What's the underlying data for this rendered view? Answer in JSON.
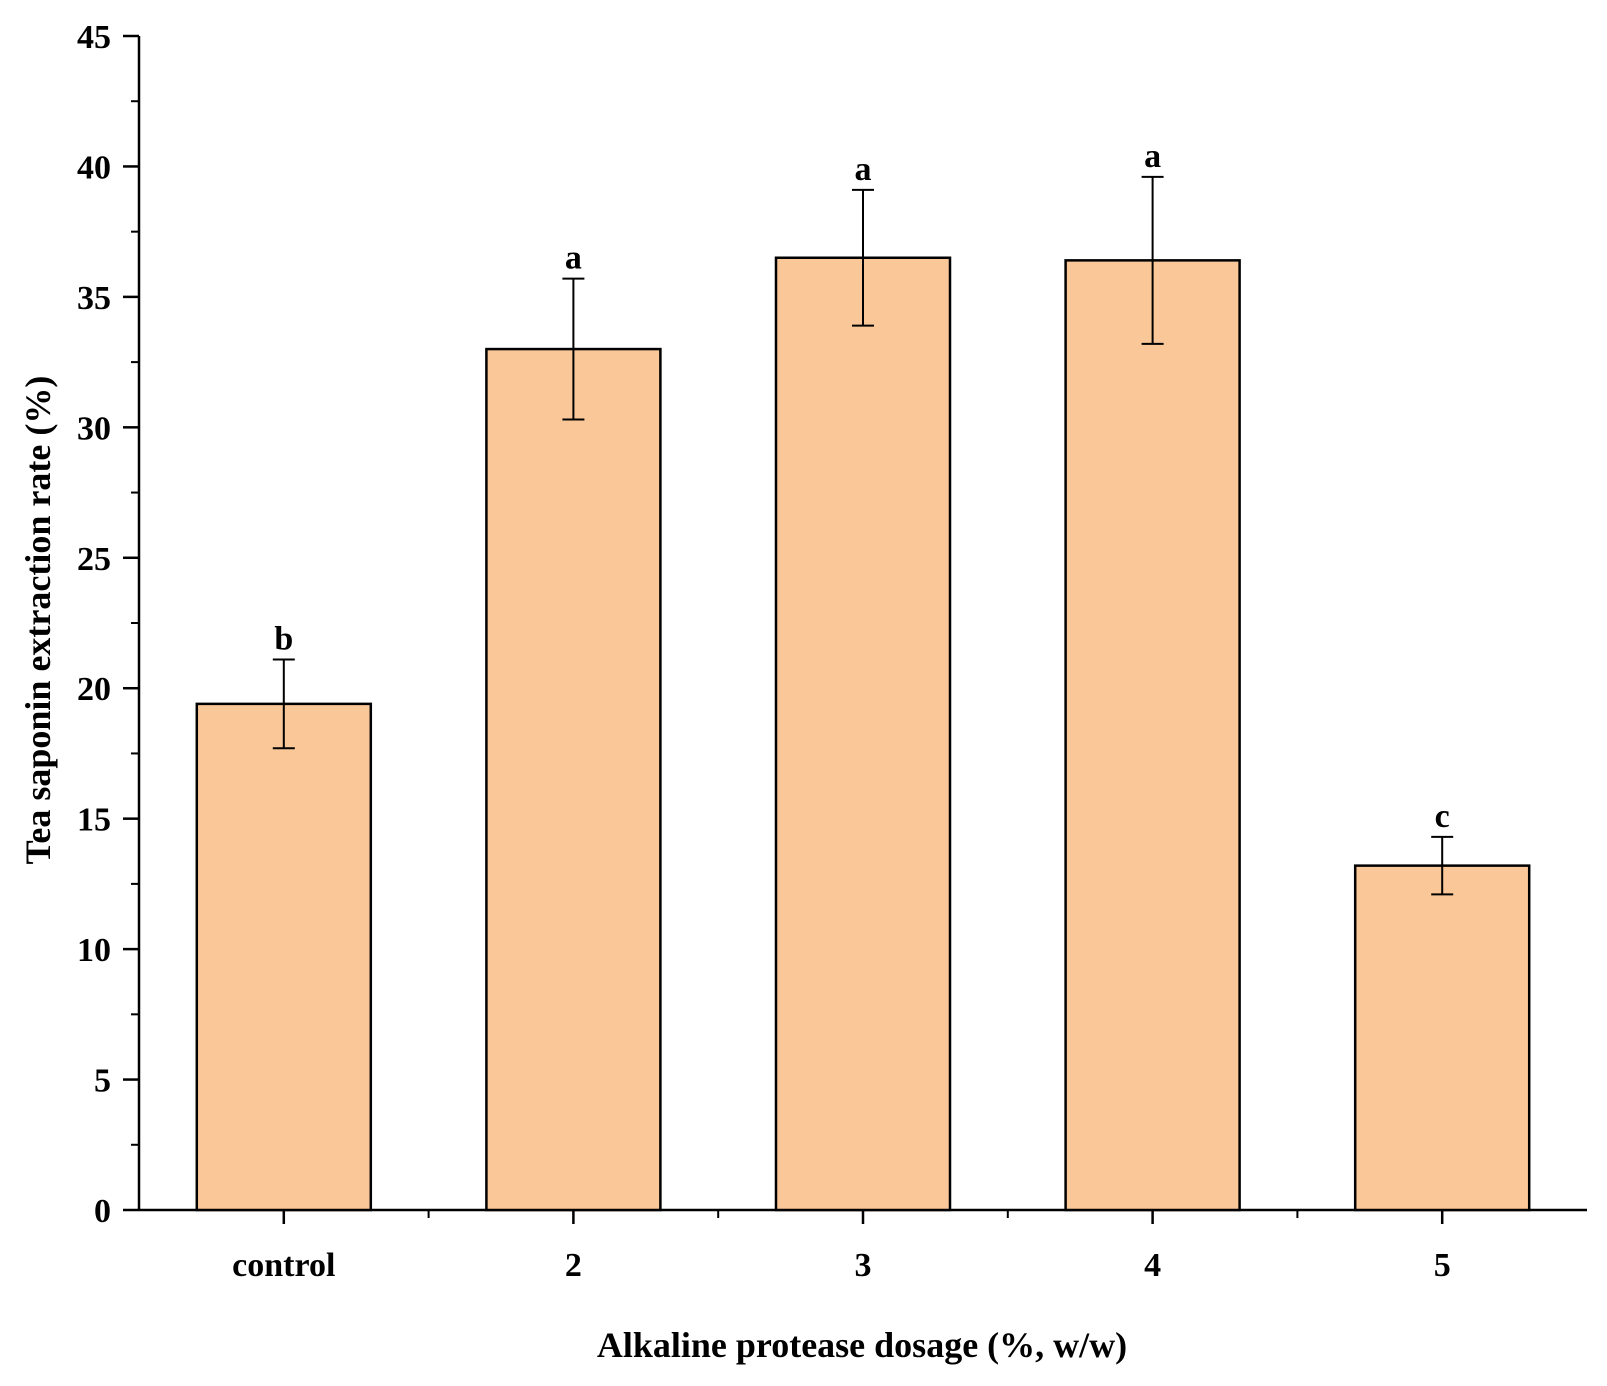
{
  "chart_data": {
    "type": "bar",
    "title": "",
    "xlabel": "Alkaline protease dosage (%, w/w)",
    "ylabel": "Tea saponin extraction rate (%)",
    "categories": [
      "control",
      "2",
      "3",
      "4",
      "5"
    ],
    "values": [
      19.4,
      33.0,
      36.5,
      36.4,
      13.2
    ],
    "errors": [
      1.7,
      2.7,
      2.6,
      3.2,
      1.1
    ],
    "significance": [
      "b",
      "a",
      "a",
      "a",
      "c"
    ],
    "ylim": [
      0,
      45
    ],
    "yticks": [
      0,
      5,
      10,
      15,
      20,
      25,
      30,
      35,
      40,
      45
    ],
    "ytick_labels": [
      "0",
      "5",
      "10",
      "15",
      "20",
      "25",
      "30",
      "35",
      "40",
      "45"
    ],
    "grid": false,
    "bar_color": "#FAC898",
    "edge_color": "#000000"
  }
}
